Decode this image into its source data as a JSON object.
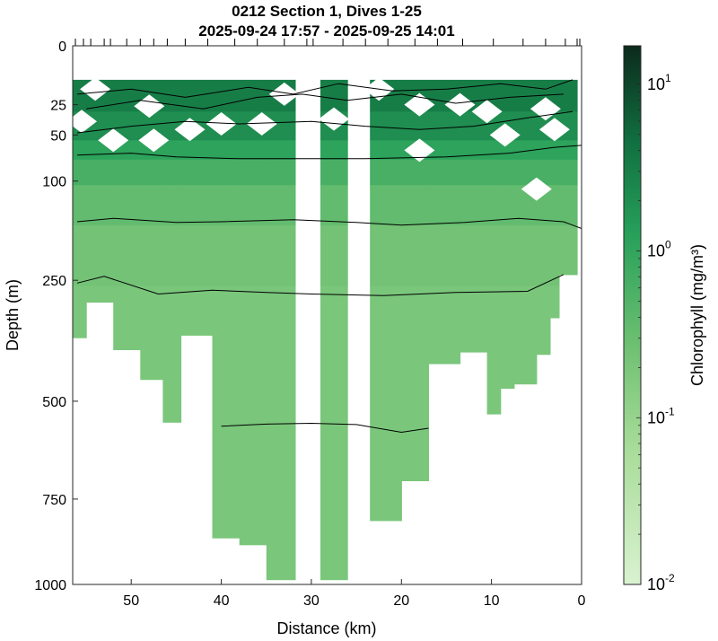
{
  "chart_data": {
    "type": "heatmap",
    "title": "0212 Section 1, Dives 1-25",
    "subtitle": "2025-09-24 17:57 - 2025-09-25 14:01",
    "xlabel": "Distance (km)",
    "ylabel": "Depth (m)",
    "x_reversed": true,
    "xlim": [
      0,
      56.5
    ],
    "ylim": [
      0,
      1000
    ],
    "y_scale": "power (compressed at depth)",
    "x_ticks": [
      "50",
      "40",
      "30",
      "20",
      "10",
      "0"
    ],
    "x_tick_values": [
      50,
      40,
      30,
      20,
      10,
      0
    ],
    "y_ticks": [
      "0",
      "25",
      "50",
      "100",
      "250",
      "500",
      "750",
      "1000"
    ],
    "y_tick_values": [
      0,
      25,
      50,
      100,
      250,
      500,
      750,
      1000
    ],
    "colorbar": {
      "label": "Chlorophyll (mg/m³)",
      "scale": "log",
      "range": [
        0.01,
        17
      ],
      "ticks": [
        {
          "base": "10",
          "exp": "1",
          "value": 10
        },
        {
          "base": "10",
          "exp": "0",
          "value": 1
        },
        {
          "base": "10",
          "exp": "-1",
          "value": 0.1
        },
        {
          "base": "10",
          "exp": "-2",
          "value": 0.01
        }
      ]
    },
    "dive_tick_positions_km": [
      56.2,
      55.3,
      54.5,
      53.0,
      52.3,
      50.5,
      49.0,
      47.5,
      46.0,
      44.0,
      41.5,
      38.5,
      36.0,
      33.0,
      30.5,
      29.8,
      26.5,
      24.0,
      21.5,
      18.5,
      16.0,
      13.2,
      9.8,
      6.5,
      4.0,
      1.8,
      0.5,
      0.2
    ],
    "data_columns": [
      {
        "x": [
          56.5,
          55.0
        ],
        "max_depth": 360
      },
      {
        "x": [
          55.0,
          52.0
        ],
        "max_depth": 290
      },
      {
        "x": [
          52.0,
          49.0
        ],
        "max_depth": 385
      },
      {
        "x": [
          49.0,
          46.5
        ],
        "max_depth": 450
      },
      {
        "x": [
          46.5,
          44.5
        ],
        "max_depth": 550
      },
      {
        "x": [
          44.5,
          41.0
        ],
        "max_depth": 355
      },
      {
        "x": [
          41.0,
          38.0
        ],
        "max_depth": 860
      },
      {
        "x": [
          38.0,
          35.0
        ],
        "max_depth": 880
      },
      {
        "x": [
          35.0,
          31.8
        ],
        "max_depth": 985
      },
      {
        "x": [
          29.0,
          26.0
        ],
        "max_depth": 985
      },
      {
        "x": [
          23.5,
          20.0
        ],
        "max_depth": 810
      },
      {
        "x": [
          20.0,
          17.0
        ],
        "max_depth": 700
      },
      {
        "x": [
          17.0,
          13.5
        ],
        "max_depth": 415
      },
      {
        "x": [
          13.5,
          10.5
        ],
        "max_depth": 390
      },
      {
        "x": [
          10.5,
          9.0
        ],
        "max_depth": 530
      },
      {
        "x": [
          9.0,
          7.5
        ],
        "max_depth": 470
      },
      {
        "x": [
          7.5,
          5.0
        ],
        "max_depth": 460
      },
      {
        "x": [
          5.0,
          3.5
        ],
        "max_depth": 395
      },
      {
        "x": [
          3.5,
          2.5
        ],
        "max_depth": 320
      },
      {
        "x": [
          2.5,
          0.5
        ],
        "max_depth": 240
      }
    ],
    "gaps_km": [
      [
        31.8,
        29.0
      ],
      [
        26.0,
        23.5
      ]
    ],
    "chlorophyll_layers": [
      {
        "top": 10,
        "bottom": 30,
        "value": 3.2
      },
      {
        "top": 30,
        "bottom": 55,
        "value": 2.0
      },
      {
        "top": 55,
        "bottom": 75,
        "value": 1.1
      },
      {
        "top": 75,
        "bottom": 105,
        "value": 0.6
      },
      {
        "top": 105,
        "bottom": 160,
        "value": 0.35
      },
      {
        "top": 160,
        "bottom": 260,
        "value": 0.24
      },
      {
        "top": 260,
        "bottom": 1000,
        "value": 0.2
      }
    ],
    "white_patches": [
      {
        "x": 33.0,
        "depth": 18
      },
      {
        "x": 22.5,
        "depth": 15
      },
      {
        "x": 48.0,
        "depth": 26
      },
      {
        "x": 40.0,
        "depth": 40
      },
      {
        "x": 35.5,
        "depth": 40
      },
      {
        "x": 27.5,
        "depth": 36
      },
      {
        "x": 43.5,
        "depth": 45
      },
      {
        "x": 47.5,
        "depth": 55
      },
      {
        "x": 52.0,
        "depth": 55
      },
      {
        "x": 18.0,
        "depth": 25
      },
      {
        "x": 10.5,
        "depth": 30
      },
      {
        "x": 4.0,
        "depth": 28
      },
      {
        "x": 8.5,
        "depth": 50
      },
      {
        "x": 3.0,
        "depth": 45
      },
      {
        "x": 18.0,
        "depth": 65
      },
      {
        "x": 55.5,
        "depth": 38
      },
      {
        "x": 5.0,
        "depth": 110
      },
      {
        "x": 13.5,
        "depth": 25
      },
      {
        "x": 54.0,
        "depth": 15
      }
    ],
    "contours": [
      [
        [
          56,
          70
        ],
        [
          50,
          68
        ],
        [
          45,
          72
        ],
        [
          38,
          74
        ],
        [
          30,
          74
        ],
        [
          24,
          74
        ],
        [
          15,
          72
        ],
        [
          8,
          68
        ],
        [
          3,
          62
        ],
        [
          0,
          60
        ]
      ],
      [
        [
          56,
          155
        ],
        [
          52,
          150
        ],
        [
          45,
          156
        ],
        [
          40,
          155
        ],
        [
          32,
          152
        ],
        [
          25,
          156
        ],
        [
          20,
          160
        ],
        [
          13,
          156
        ],
        [
          7,
          150
        ],
        [
          2,
          155
        ],
        [
          0,
          165
        ]
      ],
      [
        [
          56,
          255
        ],
        [
          53,
          243
        ],
        [
          47,
          275
        ],
        [
          41,
          268
        ],
        [
          35,
          272
        ],
        [
          30,
          275
        ],
        [
          22,
          278
        ],
        [
          14,
          272
        ],
        [
          6,
          270
        ],
        [
          2,
          240
        ]
      ],
      [
        [
          40,
          560
        ],
        [
          35,
          555
        ],
        [
          30,
          553
        ],
        [
          25,
          556
        ],
        [
          20,
          575
        ],
        [
          17,
          565
        ]
      ],
      [
        [
          56,
          48
        ],
        [
          50,
          42
        ],
        [
          44,
          38
        ],
        [
          38,
          40
        ],
        [
          30,
          38
        ],
        [
          24,
          42
        ],
        [
          18,
          45
        ],
        [
          12,
          42
        ],
        [
          6,
          35
        ],
        [
          1,
          30
        ]
      ],
      [
        [
          55,
          28
        ],
        [
          49,
          22
        ],
        [
          42,
          28
        ],
        [
          36,
          20
        ],
        [
          31,
          18
        ],
        [
          26,
          22
        ],
        [
          20,
          18
        ],
        [
          14,
          24
        ],
        [
          8,
          20
        ],
        [
          2,
          18
        ]
      ],
      [
        [
          56,
          18
        ],
        [
          50,
          15
        ],
        [
          44,
          20
        ],
        [
          37,
          14
        ],
        [
          32,
          18
        ],
        [
          27,
          12
        ],
        [
          21,
          16
        ],
        [
          15,
          15
        ],
        [
          9,
          12
        ],
        [
          4,
          15
        ],
        [
          1,
          10
        ]
      ]
    ]
  }
}
